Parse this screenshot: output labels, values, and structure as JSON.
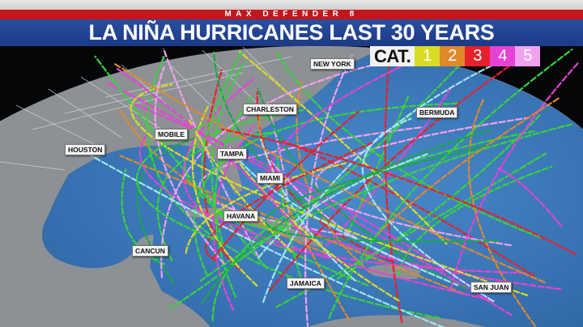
{
  "header": {
    "brand": "MAX DEFENDER 8",
    "title": "LA NIÑA HURRICANES LAST 30 YEARS"
  },
  "legend": {
    "label": "CAT.",
    "categories": [
      {
        "label": "1",
        "color": "#d8dc24"
      },
      {
        "label": "2",
        "color": "#e0882c"
      },
      {
        "label": "3",
        "color": "#e8202c"
      },
      {
        "label": "4",
        "color": "#e642d6"
      },
      {
        "label": "5",
        "color": "#f0a2ee"
      }
    ],
    "weaker_colors": [
      "#35d43a",
      "#18a848",
      "#9ee6f0"
    ]
  },
  "cities": [
    "NEW YORK",
    "CHARLESTON",
    "BERMUDA",
    "MOBILE",
    "HOUSTON",
    "TAMPA",
    "MIAMI",
    "HAVANA",
    "CANCUN",
    "JAMAICA",
    "SAN JUAN"
  ],
  "colors": {
    "ocean": "#3c7cc0",
    "land": "#8c9094",
    "border": "#cfd6dc"
  }
}
